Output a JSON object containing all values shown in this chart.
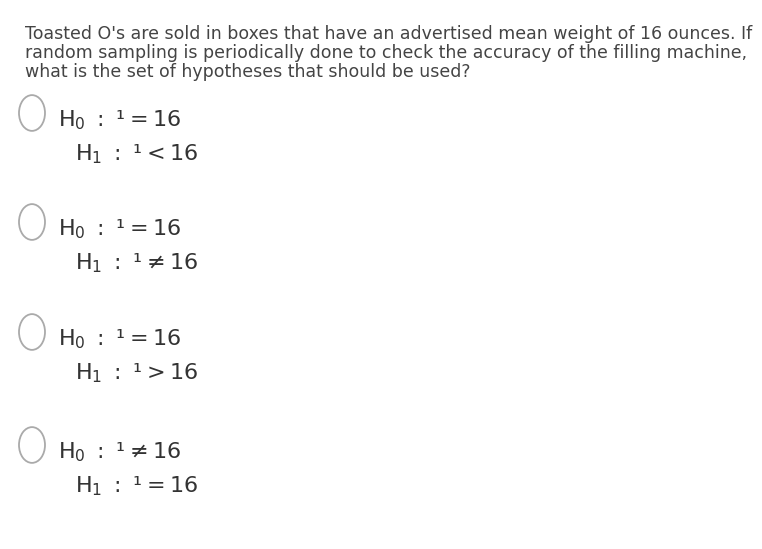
{
  "background_color": "#ffffff",
  "text_color": "#555555",
  "question_lines": [
    "Toasted O's are sold in boxes that have an advertised mean weight of 16 ounces. If",
    "random sampling is periodically done to check the accuracy of the filling machine,",
    "what is the set of hypotheses that should be used?"
  ],
  "question_fontsize": 12.5,
  "question_color": "#444444",
  "options": [
    {
      "h0": "$H_0\\ :\\ \\mu = 16$",
      "h1": "$H_1\\ :\\ \\mu < 16$"
    },
    {
      "h0": "$H_0\\ :\\ \\mu = 16$",
      "h1": "$H_1\\ :\\ \\mu \\neq 16$"
    },
    {
      "h0": "$H_0\\ :\\ \\mu = 16$",
      "h1": "$H_1\\ :\\ \\mu > 16$"
    },
    {
      "h0": "$H_0\\ :\\ \\mu \\neq 16$",
      "h1": "$H_1\\ :\\ \\mu = 16$"
    }
  ],
  "circle_color": "#aaaaaa",
  "math_fontsize": 16,
  "math_color": "#333333"
}
